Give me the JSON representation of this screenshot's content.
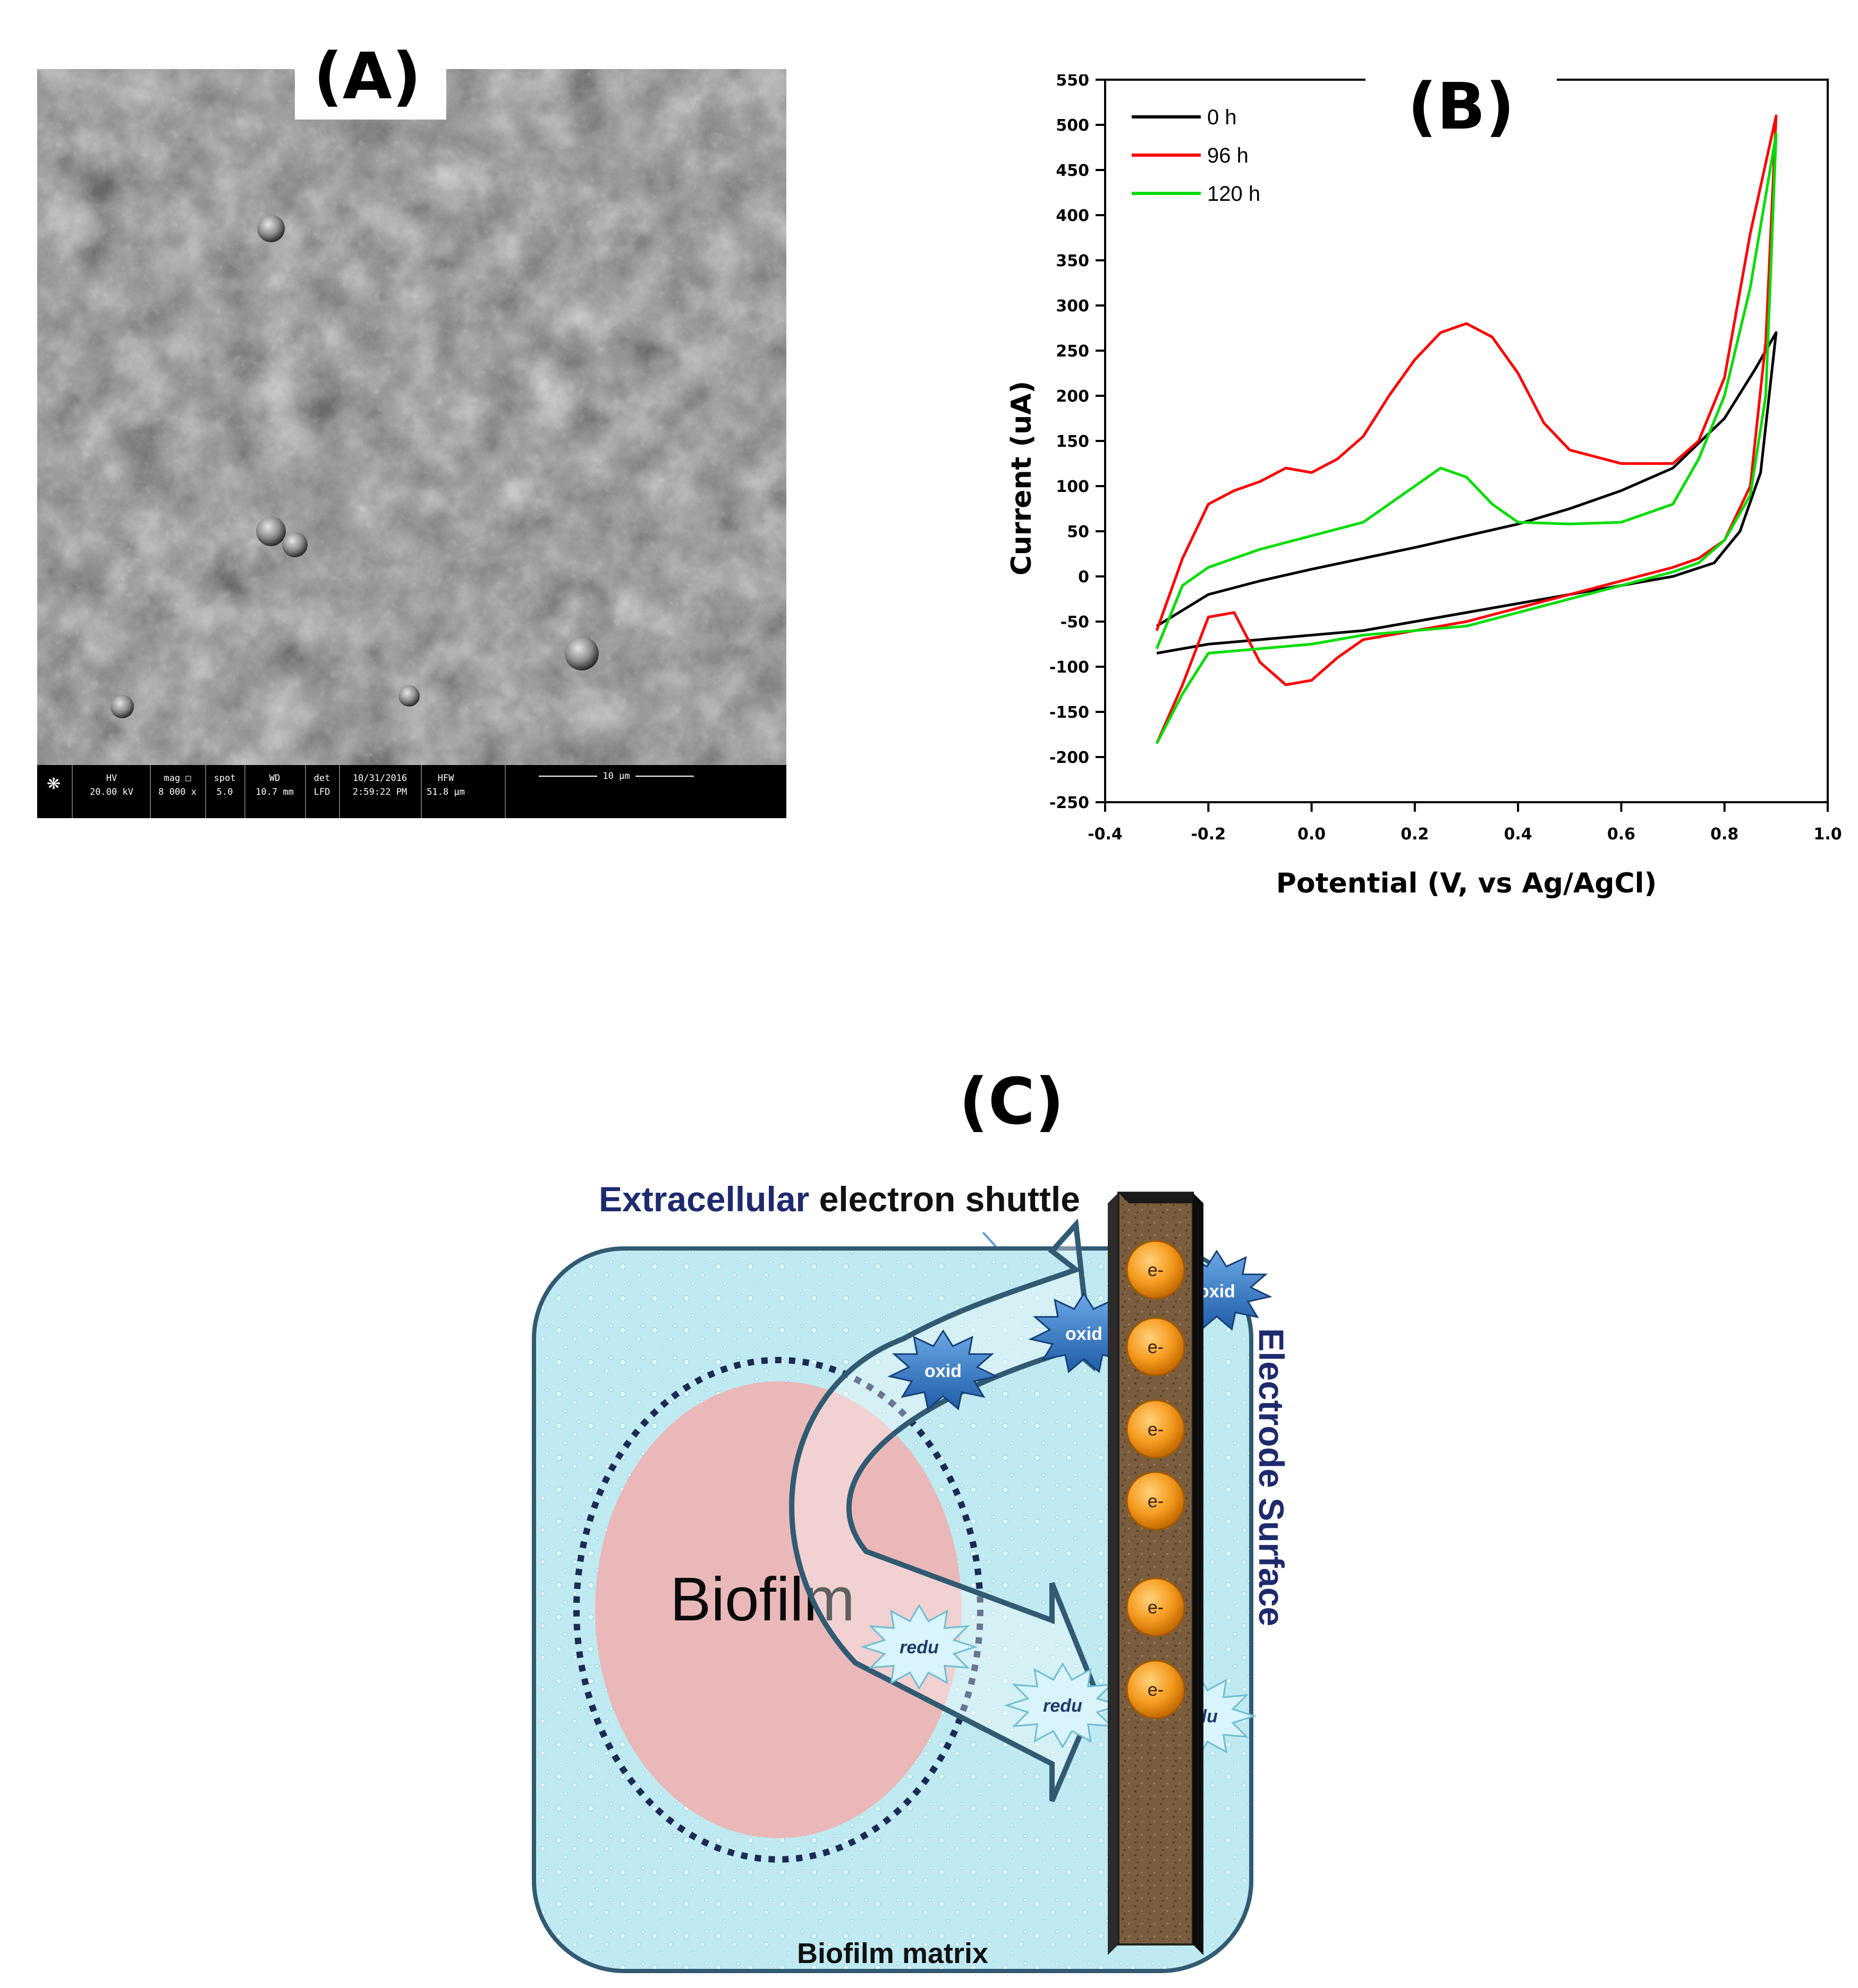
{
  "panels": {
    "a": "(A)",
    "b": "(B)",
    "c": "(C)"
  },
  "sem_info": {
    "hv_label": "HV",
    "hv_value": "20.00 kV",
    "mag_label": "mag □",
    "mag_value": "8 000 x",
    "spot_label": "spot",
    "spot_value": "5.0",
    "wd_label": "WD",
    "wd_value": "10.7 mm",
    "det_label": "det",
    "det_value": "LFD",
    "date": "10/31/2016",
    "time": "2:59:22 PM",
    "hfw_label": "HFW",
    "hfw_value": "51.8 μm",
    "scale_bar": "10 μm"
  },
  "chart_data": {
    "type": "line",
    "title": "",
    "xlabel": "Potential (V, vs Ag/AgCl)",
    "ylabel": "Current (uA)",
    "xlim": [
      -0.4,
      1.0
    ],
    "ylim": [
      -250,
      550
    ],
    "xticks": [
      "-0.4",
      "-0.2",
      "0.0",
      "0.2",
      "0.4",
      "0.6",
      "0.8",
      "1.0"
    ],
    "yticks": [
      "550",
      "500",
      "450",
      "400",
      "350",
      "300",
      "250",
      "200",
      "150",
      "100",
      "50",
      "0",
      "-50",
      "-100",
      "-150",
      "-200",
      "-250"
    ],
    "legend_position": "top-left",
    "series": [
      {
        "name": "0 h",
        "color": "#000000",
        "x": [
          -0.3,
          -0.2,
          -0.1,
          0.0,
          0.1,
          0.2,
          0.3,
          0.4,
          0.5,
          0.6,
          0.7,
          0.8,
          0.86,
          0.9,
          0.87,
          0.83,
          0.78,
          0.7,
          0.6,
          0.5,
          0.4,
          0.3,
          0.2,
          0.1,
          0.0,
          -0.1,
          -0.2,
          -0.3
        ],
        "y": [
          -55,
          -20,
          -5,
          8,
          20,
          32,
          45,
          58,
          75,
          95,
          120,
          175,
          230,
          270,
          115,
          50,
          15,
          0,
          -10,
          -20,
          -30,
          -40,
          -50,
          -60,
          -65,
          -70,
          -75,
          -85
        ]
      },
      {
        "name": "96 h",
        "color": "#ff0000",
        "x": [
          -0.3,
          -0.25,
          -0.2,
          -0.15,
          -0.1,
          -0.05,
          0.0,
          0.05,
          0.1,
          0.15,
          0.2,
          0.25,
          0.3,
          0.35,
          0.4,
          0.45,
          0.5,
          0.6,
          0.7,
          0.75,
          0.8,
          0.85,
          0.9,
          0.88,
          0.85,
          0.8,
          0.75,
          0.7,
          0.6,
          0.5,
          0.4,
          0.3,
          0.2,
          0.1,
          0.05,
          0.0,
          -0.05,
          -0.1,
          -0.15,
          -0.2,
          -0.25,
          -0.3
        ],
        "y": [
          -60,
          20,
          80,
          95,
          105,
          120,
          115,
          130,
          155,
          200,
          240,
          270,
          280,
          265,
          225,
          170,
          140,
          125,
          125,
          150,
          220,
          380,
          510,
          260,
          100,
          40,
          20,
          10,
          -5,
          -20,
          -35,
          -50,
          -60,
          -70,
          -90,
          -115,
          -120,
          -95,
          -40,
          -45,
          -120,
          -185
        ]
      },
      {
        "name": "120 h",
        "color": "#00dd00",
        "x": [
          -0.3,
          -0.25,
          -0.2,
          -0.1,
          0.0,
          0.1,
          0.15,
          0.2,
          0.25,
          0.3,
          0.35,
          0.4,
          0.5,
          0.6,
          0.7,
          0.75,
          0.8,
          0.85,
          0.9,
          0.88,
          0.85,
          0.8,
          0.75,
          0.7,
          0.6,
          0.5,
          0.4,
          0.3,
          0.2,
          0.1,
          0.0,
          -0.1,
          -0.2,
          -0.25,
          -0.3
        ],
        "y": [
          -80,
          -10,
          10,
          30,
          45,
          60,
          80,
          100,
          120,
          110,
          80,
          60,
          58,
          60,
          80,
          130,
          200,
          320,
          490,
          200,
          90,
          40,
          15,
          5,
          -10,
          -25,
          -40,
          -55,
          -60,
          -65,
          -75,
          -80,
          -85,
          -130,
          -185
        ]
      }
    ]
  },
  "diagram": {
    "shuttle_title_highlight": "Extracellular",
    "shuttle_title_rest": " electron shuttle",
    "biofilm": "Biofilm",
    "matrix": "Biofilm matrix",
    "electrode": "Electrode Surface",
    "oxid_label": "oxid",
    "redu_label": "redu",
    "electron_label": "e-",
    "oxid_count": 3,
    "redu_count": 3,
    "electron_count": 6
  }
}
